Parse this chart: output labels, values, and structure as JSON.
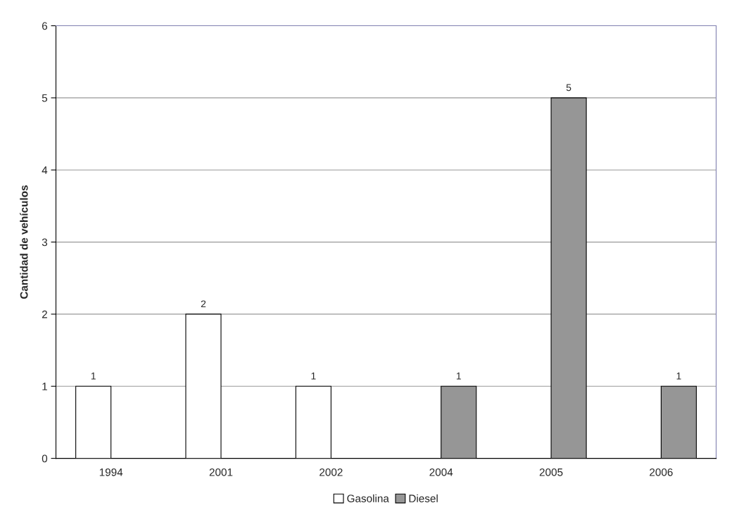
{
  "chart_data": {
    "type": "bar",
    "ylabel": "Cantidad de vehículos",
    "categories": [
      "1994",
      "2001",
      "2002",
      "2004",
      "2005",
      "2006"
    ],
    "series": [
      {
        "name": "Gasolina",
        "color": "#ffffff",
        "values": [
          1,
          2,
          1,
          null,
          null,
          null
        ]
      },
      {
        "name": "Diesel",
        "color": "#969696",
        "values": [
          null,
          null,
          null,
          1,
          5,
          1
        ]
      }
    ],
    "ylim": [
      0,
      6
    ],
    "yticks": [
      0,
      1,
      2,
      3,
      4,
      5,
      6
    ],
    "grid": "y",
    "legend": "bottom",
    "data_labels": true
  }
}
